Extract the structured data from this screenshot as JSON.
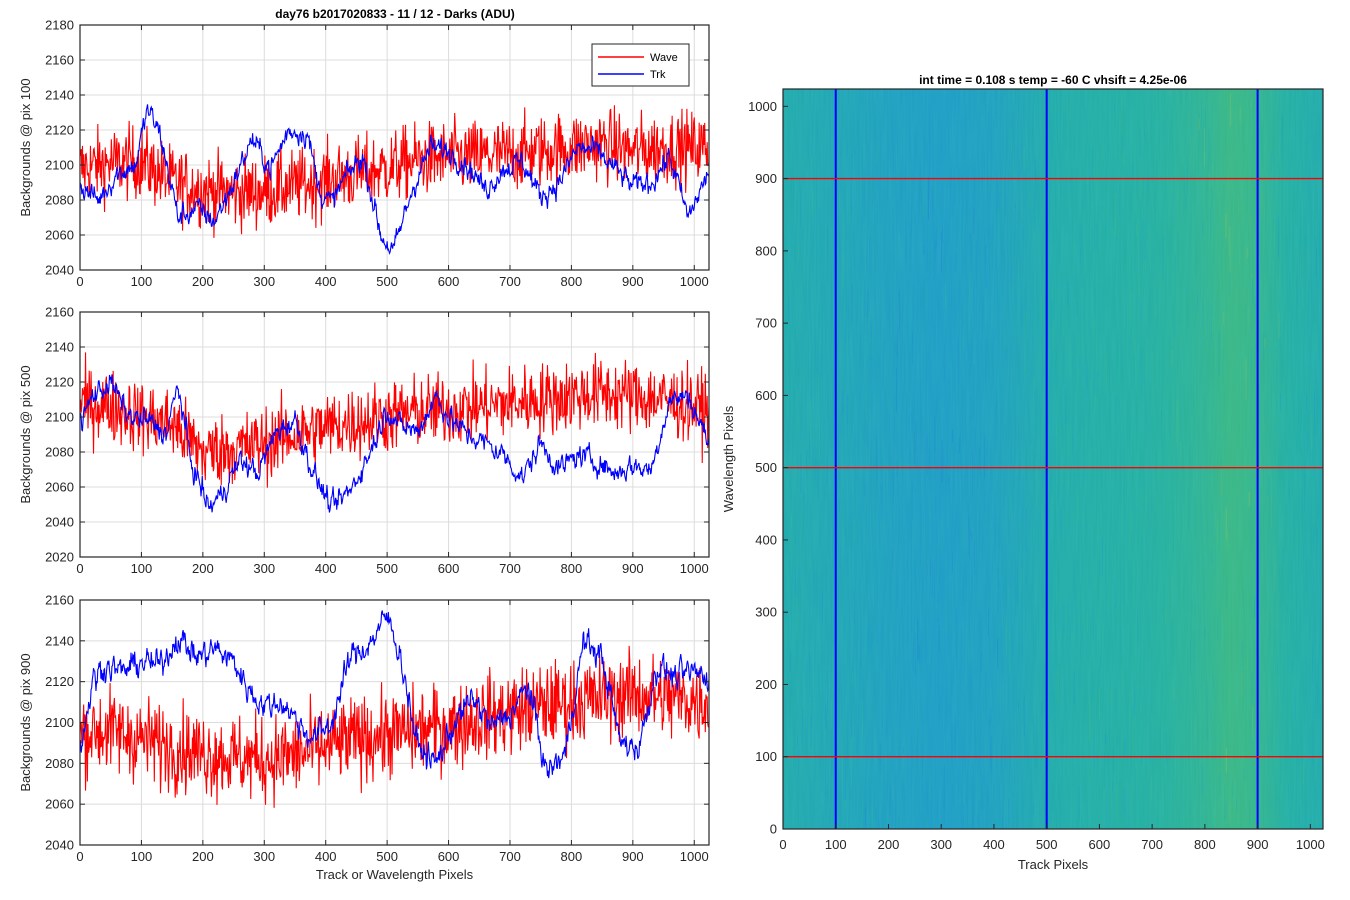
{
  "figure": {
    "title": "day76 b2017020833 - 11 / 12 - Darks (ADU)",
    "colors": {
      "wave": "#ff0000",
      "trk": "#0000ff",
      "grid": "#dcdcdc",
      "axis": "#262626"
    }
  },
  "chart_data": [
    {
      "type": "line",
      "title": "day76 b2017020833 - 11 / 12 - Darks (ADU)",
      "xlabel": "",
      "ylabel": "Backgrounds @ pix 100",
      "xlim": [
        0,
        1024
      ],
      "ylim": [
        2040,
        2180
      ],
      "xticks": [
        0,
        100,
        200,
        300,
        400,
        500,
        600,
        700,
        800,
        900,
        1000
      ],
      "yticks": [
        2040,
        2060,
        2080,
        2100,
        2120,
        2140,
        2160,
        2180
      ],
      "grid": true,
      "legend": {
        "position": "top-right",
        "entries": [
          "Wave",
          "Trk"
        ]
      },
      "series": [
        {
          "name": "Wave",
          "color": "#ff0000",
          "x": [
            0,
            50,
            100,
            150,
            200,
            250,
            300,
            350,
            400,
            450,
            500,
            550,
            600,
            650,
            700,
            750,
            800,
            850,
            900,
            950,
            1024
          ],
          "values": [
            2098,
            2101,
            2102,
            2090,
            2086,
            2084,
            2085,
            2088,
            2091,
            2095,
            2098,
            2103,
            2104,
            2105,
            2106,
            2108,
            2110,
            2112,
            2108,
            2110,
            2110
          ]
        },
        {
          "name": "Trk",
          "color": "#0000ff",
          "x": [
            0,
            30,
            60,
            90,
            110,
            130,
            160,
            190,
            220,
            250,
            280,
            310,
            340,
            370,
            390,
            410,
            430,
            460,
            490,
            510,
            540,
            570,
            600,
            630,
            660,
            690,
            720,
            750,
            780,
            810,
            840,
            870,
            900,
            930,
            960,
            990,
            1024
          ],
          "values": [
            2088,
            2080,
            2095,
            2100,
            2132,
            2118,
            2070,
            2075,
            2068,
            2090,
            2115,
            2098,
            2120,
            2118,
            2085,
            2078,
            2092,
            2105,
            2060,
            2050,
            2085,
            2110,
            2108,
            2100,
            2086,
            2098,
            2102,
            2082,
            2090,
            2110,
            2108,
            2098,
            2088,
            2090,
            2105,
            2070,
            2096
          ]
        }
      ]
    },
    {
      "type": "line",
      "title": "",
      "xlabel": "",
      "ylabel": "Backgrounds @ pix 500",
      "xlim": [
        0,
        1024
      ],
      "ylim": [
        2020,
        2160
      ],
      "xticks": [
        0,
        100,
        200,
        300,
        400,
        500,
        600,
        700,
        800,
        900,
        1000
      ],
      "yticks": [
        2020,
        2040,
        2060,
        2080,
        2100,
        2120,
        2140,
        2160
      ],
      "grid": true,
      "series": [
        {
          "name": "Wave",
          "color": "#ff0000",
          "x": [
            0,
            50,
            100,
            150,
            200,
            250,
            300,
            350,
            400,
            450,
            500,
            550,
            600,
            650,
            700,
            750,
            800,
            850,
            900,
            950,
            1024
          ],
          "values": [
            2108,
            2106,
            2100,
            2096,
            2080,
            2082,
            2085,
            2090,
            2094,
            2097,
            2100,
            2103,
            2104,
            2106,
            2108,
            2110,
            2112,
            2114,
            2112,
            2110,
            2104
          ]
        },
        {
          "name": "Trk",
          "color": "#0000ff",
          "x": [
            0,
            20,
            50,
            80,
            110,
            140,
            160,
            180,
            210,
            230,
            260,
            290,
            320,
            350,
            380,
            410,
            440,
            470,
            500,
            520,
            550,
            580,
            600,
            630,
            660,
            690,
            720,
            750,
            780,
            810,
            840,
            870,
            900,
            930,
            960,
            990,
            1024
          ],
          "values": [
            2095,
            2112,
            2120,
            2100,
            2098,
            2090,
            2118,
            2075,
            2048,
            2056,
            2075,
            2068,
            2092,
            2098,
            2068,
            2048,
            2058,
            2078,
            2105,
            2095,
            2092,
            2112,
            2100,
            2090,
            2085,
            2078,
            2065,
            2085,
            2070,
            2078,
            2075,
            2068,
            2072,
            2070,
            2110,
            2112,
            2085
          ]
        }
      ]
    },
    {
      "type": "line",
      "title": "",
      "xlabel": "Track or Wavelength Pixels",
      "ylabel": "Backgrounds @ pix 900",
      "xlim": [
        0,
        1024
      ],
      "ylim": [
        2040,
        2160
      ],
      "xticks": [
        0,
        100,
        200,
        300,
        400,
        500,
        600,
        700,
        800,
        900,
        1000
      ],
      "yticks": [
        2040,
        2060,
        2080,
        2100,
        2120,
        2140,
        2160
      ],
      "grid": true,
      "series": [
        {
          "name": "Wave",
          "color": "#ff0000",
          "x": [
            0,
            50,
            100,
            150,
            200,
            250,
            300,
            350,
            400,
            450,
            500,
            550,
            600,
            650,
            700,
            750,
            800,
            850,
            900,
            950,
            1024
          ],
          "values": [
            2095,
            2096,
            2092,
            2088,
            2085,
            2083,
            2082,
            2084,
            2088,
            2092,
            2094,
            2096,
            2098,
            2102,
            2105,
            2108,
            2110,
            2112,
            2114,
            2112,
            2110
          ]
        },
        {
          "name": "Trk",
          "color": "#0000ff",
          "x": [
            0,
            20,
            40,
            70,
            100,
            130,
            160,
            190,
            220,
            250,
            270,
            300,
            330,
            360,
            380,
            410,
            440,
            470,
            500,
            520,
            550,
            580,
            610,
            640,
            670,
            700,
            730,
            760,
            790,
            820,
            850,
            880,
            910,
            940,
            970,
            1000,
            1024
          ],
          "values": [
            2085,
            2120,
            2128,
            2125,
            2130,
            2128,
            2142,
            2132,
            2136,
            2130,
            2118,
            2108,
            2110,
            2098,
            2092,
            2100,
            2132,
            2138,
            2152,
            2135,
            2088,
            2080,
            2100,
            2112,
            2098,
            2104,
            2118,
            2075,
            2085,
            2140,
            2132,
            2090,
            2088,
            2128,
            2122,
            2125,
            2122
          ]
        }
      ]
    },
    {
      "type": "heatmap",
      "title": "int time = 0.108 s   temp = -60 C   vhsift = 4.25e-06",
      "xlabel": "Track Pixels",
      "ylabel": "Wavelength Pixels",
      "xlim": [
        0,
        1024
      ],
      "ylim": [
        0,
        1024
      ],
      "xticks": [
        0,
        100,
        200,
        300,
        400,
        500,
        600,
        700,
        800,
        900,
        1000
      ],
      "yticks": [
        0,
        100,
        200,
        300,
        400,
        500,
        600,
        700,
        800,
        900,
        1000
      ],
      "grid": false,
      "colormap": [
        "#1d7fd8",
        "#1f9bc8",
        "#23ada6",
        "#40b880",
        "#b8c040"
      ],
      "vertical_markers": {
        "color": "#0000ff",
        "x": [
          100,
          500,
          900
        ]
      },
      "horizontal_markers": {
        "color": "#ff0000",
        "y": [
          100,
          500,
          900
        ]
      },
      "column_profile": {
        "x": [
          0,
          100,
          200,
          300,
          400,
          500,
          600,
          700,
          800,
          850,
          900,
          950,
          1024
        ],
        "level": [
          0.45,
          0.38,
          0.3,
          0.26,
          0.3,
          0.45,
          0.5,
          0.52,
          0.62,
          0.72,
          0.66,
          0.52,
          0.45
        ]
      }
    }
  ]
}
